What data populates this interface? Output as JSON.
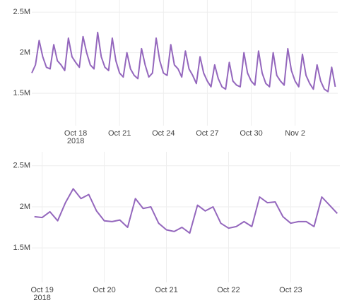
{
  "chart_data": [
    {
      "type": "line",
      "color": "#9467bd",
      "grid": true,
      "xlim": [
        "2018-10-15 00:00",
        "2018-11-04 22:00"
      ],
      "xticks": [
        {
          "value": "2018-10-18 00:00",
          "label": "Oct 18"
        },
        {
          "value": "2018-10-21 00:00",
          "label": "Oct 21"
        },
        {
          "value": "2018-10-24 00:00",
          "label": "Oct 24"
        },
        {
          "value": "2018-10-27 00:00",
          "label": "Oct 27"
        },
        {
          "value": "2018-10-30 00:00",
          "label": "Oct 30"
        },
        {
          "value": "2018-11-02 00:00",
          "label": "Nov 2"
        }
      ],
      "xyear": "2018",
      "ylim": [
        1100000,
        2650000
      ],
      "yticks": [
        {
          "value": 1500000,
          "label": "1.5M"
        },
        {
          "value": 2000000,
          "label": "2M"
        },
        {
          "value": 2500000,
          "label": "2.5M"
        }
      ],
      "x": [
        "2018-10-15 00:00",
        "2018-10-15 06:00",
        "2018-10-15 12:00",
        "2018-10-15 18:00",
        "2018-10-16 00:00",
        "2018-10-16 06:00",
        "2018-10-16 12:00",
        "2018-10-16 18:00",
        "2018-10-17 00:00",
        "2018-10-17 06:00",
        "2018-10-17 12:00",
        "2018-10-17 18:00",
        "2018-10-18 00:00",
        "2018-10-18 06:00",
        "2018-10-18 12:00",
        "2018-10-18 18:00",
        "2018-10-19 00:00",
        "2018-10-19 06:00",
        "2018-10-19 12:00",
        "2018-10-19 18:00",
        "2018-10-20 00:00",
        "2018-10-20 06:00",
        "2018-10-20 12:00",
        "2018-10-20 18:00",
        "2018-10-21 00:00",
        "2018-10-21 06:00",
        "2018-10-21 12:00",
        "2018-10-21 18:00",
        "2018-10-22 00:00",
        "2018-10-22 06:00",
        "2018-10-22 12:00",
        "2018-10-22 18:00",
        "2018-10-23 00:00",
        "2018-10-23 06:00",
        "2018-10-23 12:00",
        "2018-10-23 18:00",
        "2018-10-24 00:00",
        "2018-10-24 06:00",
        "2018-10-24 12:00",
        "2018-10-24 18:00",
        "2018-10-25 00:00",
        "2018-10-25 06:00",
        "2018-10-25 12:00",
        "2018-10-25 18:00",
        "2018-10-26 00:00",
        "2018-10-26 06:00",
        "2018-10-26 12:00",
        "2018-10-26 18:00",
        "2018-10-27 00:00",
        "2018-10-27 06:00",
        "2018-10-27 12:00",
        "2018-10-27 18:00",
        "2018-10-28 00:00",
        "2018-10-28 06:00",
        "2018-10-28 12:00",
        "2018-10-28 18:00",
        "2018-10-29 00:00",
        "2018-10-29 06:00",
        "2018-10-29 12:00",
        "2018-10-29 18:00",
        "2018-10-30 00:00",
        "2018-10-30 06:00",
        "2018-10-30 12:00",
        "2018-10-30 18:00",
        "2018-10-31 00:00",
        "2018-10-31 06:00",
        "2018-10-31 12:00",
        "2018-10-31 18:00",
        "2018-11-01 00:00",
        "2018-11-01 06:00",
        "2018-11-01 12:00",
        "2018-11-01 18:00",
        "2018-11-02 00:00",
        "2018-11-02 06:00",
        "2018-11-02 12:00",
        "2018-11-02 18:00",
        "2018-11-03 00:00",
        "2018-11-03 06:00",
        "2018-11-03 12:00",
        "2018-11-03 18:00",
        "2018-11-04 00:00",
        "2018-11-04 06:00",
        "2018-11-04 12:00",
        "2018-11-04 18:00"
      ],
      "values": [
        1750000,
        1850000,
        2150000,
        1950000,
        1820000,
        1800000,
        2100000,
        1900000,
        1850000,
        1780000,
        2180000,
        1950000,
        1880000,
        1820000,
        2200000,
        2000000,
        1850000,
        1800000,
        2250000,
        1950000,
        1820000,
        1780000,
        2180000,
        1900000,
        1750000,
        1700000,
        2000000,
        1800000,
        1720000,
        1680000,
        2050000,
        1850000,
        1700000,
        1750000,
        2180000,
        1900000,
        1750000,
        1720000,
        2100000,
        1850000,
        1800000,
        1700000,
        2020000,
        1800000,
        1720000,
        1620000,
        1950000,
        1750000,
        1650000,
        1580000,
        1850000,
        1680000,
        1580000,
        1550000,
        1880000,
        1650000,
        1600000,
        1580000,
        2000000,
        1750000,
        1650000,
        1600000,
        2020000,
        1750000,
        1620000,
        1580000,
        2000000,
        1720000,
        1650000,
        1600000,
        2050000,
        1780000,
        1650000,
        1580000,
        1980000,
        1720000,
        1620000,
        1550000,
        1850000,
        1650000,
        1550000,
        1520000,
        1820000,
        1580000
      ]
    },
    {
      "type": "line",
      "color": "#9467bd",
      "grid": true,
      "xlim": [
        "2018-10-18 20:00",
        "2018-10-23 19:00"
      ],
      "xticks": [
        {
          "value": "2018-10-19 00:00",
          "label": "Oct 19"
        },
        {
          "value": "2018-10-20 00:00",
          "label": "Oct 20"
        },
        {
          "value": "2018-10-21 00:00",
          "label": "Oct 21"
        },
        {
          "value": "2018-10-22 00:00",
          "label": "Oct 22"
        },
        {
          "value": "2018-10-23 00:00",
          "label": "Oct 23"
        }
      ],
      "xyear": "2018",
      "ylim": [
        1080000,
        2670000
      ],
      "yticks": [
        {
          "value": 1500000,
          "label": "1.5M"
        },
        {
          "value": 2000000,
          "label": "2M"
        },
        {
          "value": 2500000,
          "label": "2.5M"
        }
      ],
      "x": [
        "2018-10-18 21:00",
        "2018-10-19 00:00",
        "2018-10-19 03:00",
        "2018-10-19 06:00",
        "2018-10-19 09:00",
        "2018-10-19 12:00",
        "2018-10-19 15:00",
        "2018-10-19 18:00",
        "2018-10-19 21:00",
        "2018-10-20 00:00",
        "2018-10-20 03:00",
        "2018-10-20 06:00",
        "2018-10-20 09:00",
        "2018-10-20 12:00",
        "2018-10-20 15:00",
        "2018-10-20 18:00",
        "2018-10-20 21:00",
        "2018-10-21 00:00",
        "2018-10-21 03:00",
        "2018-10-21 06:00",
        "2018-10-21 09:00",
        "2018-10-21 12:00",
        "2018-10-21 15:00",
        "2018-10-21 18:00",
        "2018-10-21 21:00",
        "2018-10-22 00:00",
        "2018-10-22 03:00",
        "2018-10-22 06:00",
        "2018-10-22 09:00",
        "2018-10-22 12:00",
        "2018-10-22 15:00",
        "2018-10-22 18:00",
        "2018-10-22 21:00",
        "2018-10-23 00:00",
        "2018-10-23 03:00",
        "2018-10-23 06:00",
        "2018-10-23 09:00",
        "2018-10-23 12:00",
        "2018-10-23 15:00",
        "2018-10-23 18:00"
      ],
      "values": [
        1880000,
        1870000,
        1940000,
        1830000,
        2050000,
        2220000,
        2100000,
        2150000,
        1950000,
        1830000,
        1820000,
        1840000,
        1750000,
        2100000,
        1980000,
        2000000,
        1800000,
        1720000,
        1700000,
        1750000,
        1680000,
        2020000,
        1950000,
        2000000,
        1800000,
        1740000,
        1760000,
        1820000,
        1760000,
        2120000,
        2050000,
        2060000,
        1880000,
        1800000,
        1820000,
        1820000,
        1760000,
        2120000,
        2020000,
        1920000
      ]
    }
  ]
}
